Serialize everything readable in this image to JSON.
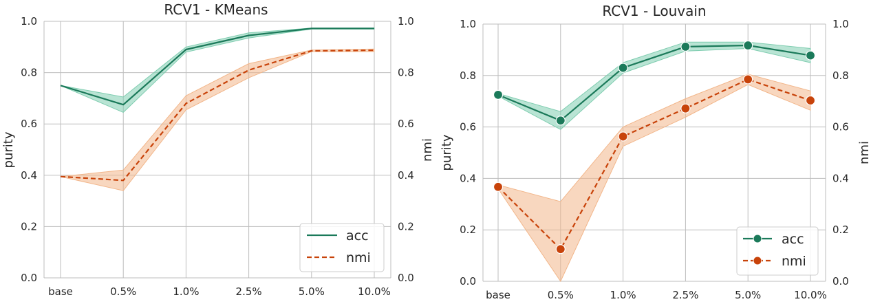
{
  "chart_data": [
    {
      "type": "line",
      "title": "RCV1 - KMeans",
      "ylabel_left": "purity",
      "ylabel_right": "nmi",
      "ylim": [
        0,
        1
      ],
      "categories": [
        "base",
        "0.5%",
        "1.0%",
        "2.5%",
        "5.0%",
        "10.0%"
      ],
      "yticks": [
        "0.0",
        "0.2",
        "0.4",
        "0.6",
        "0.8",
        "1.0"
      ],
      "grid": true,
      "legend_position": "lower-right",
      "markers": false,
      "series": [
        {
          "name": "acc",
          "color": "#1b7a5a",
          "band": "#7fcdb0",
          "dash": false,
          "values": [
            0.75,
            0.675,
            0.89,
            0.945,
            0.972,
            0.972
          ],
          "lower": [
            0.75,
            0.645,
            0.88,
            0.935,
            0.97,
            0.97
          ],
          "upper": [
            0.75,
            0.705,
            0.9,
            0.955,
            0.974,
            0.974
          ]
        },
        {
          "name": "nmi",
          "color": "#c8430a",
          "band": "#f2b68a",
          "dash": true,
          "values": [
            0.395,
            0.38,
            0.68,
            0.81,
            0.885,
            0.887
          ],
          "lower": [
            0.395,
            0.34,
            0.655,
            0.78,
            0.882,
            0.882
          ],
          "upper": [
            0.395,
            0.42,
            0.71,
            0.835,
            0.888,
            0.892
          ]
        }
      ]
    },
    {
      "type": "line",
      "title": "RCV1 - Louvain",
      "ylabel_left": "purity",
      "ylabel_right": "nmi",
      "ylim": [
        0,
        1
      ],
      "categories": [
        "base",
        "0.5%",
        "1.0%",
        "2.5%",
        "5.0%",
        "10.0%"
      ],
      "yticks": [
        "0.0",
        "0.2",
        "0.4",
        "0.6",
        "0.8",
        "1.0"
      ],
      "grid": true,
      "legend_position": "lower-right",
      "markers": true,
      "series": [
        {
          "name": "acc",
          "color": "#1b7a5a",
          "band": "#7fcdb0",
          "dash": false,
          "values": [
            0.725,
            0.625,
            0.83,
            0.912,
            0.917,
            0.878
          ],
          "lower": [
            0.72,
            0.59,
            0.81,
            0.895,
            0.905,
            0.85
          ],
          "upper": [
            0.73,
            0.66,
            0.85,
            0.93,
            0.93,
            0.905
          ]
        },
        {
          "name": "nmi",
          "color": "#c8430a",
          "band": "#f2b68a",
          "dash": true,
          "values": [
            0.367,
            0.125,
            0.563,
            0.672,
            0.785,
            0.703
          ],
          "lower": [
            0.36,
            0.0,
            0.525,
            0.638,
            0.765,
            0.665
          ],
          "upper": [
            0.375,
            0.31,
            0.6,
            0.71,
            0.805,
            0.74
          ]
        }
      ]
    }
  ]
}
